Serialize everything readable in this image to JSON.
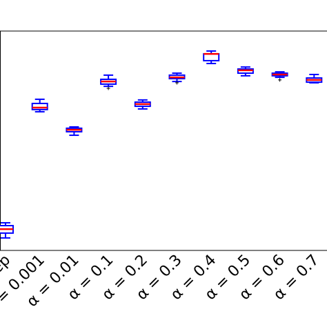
{
  "chart_data": {
    "type": "box",
    "categories": [
      "Rep",
      "α = 0.001",
      "α = 0.01",
      "α = 0.1",
      "α = 0.2",
      "α = 0.3",
      "α = 0.4",
      "α = 0.5",
      "α = 0.6",
      "α = 0.7"
    ],
    "boxes": [
      {
        "min": 0.057,
        "q1": 0.079,
        "median": 0.097,
        "q3": 0.113,
        "max": 0.126,
        "fliers": []
      },
      {
        "min": 0.632,
        "q1": 0.642,
        "median": 0.651,
        "q3": 0.67,
        "max": 0.689,
        "fliers": []
      },
      {
        "min": 0.525,
        "q1": 0.541,
        "median": 0.55,
        "q3": 0.557,
        "max": 0.563,
        "fliers": []
      },
      {
        "min": 0.748,
        "q1": 0.758,
        "median": 0.77,
        "q3": 0.78,
        "max": 0.799,
        "fliers": [
          0.739
        ]
      },
      {
        "min": 0.645,
        "q1": 0.657,
        "median": 0.667,
        "q3": 0.676,
        "max": 0.686,
        "fliers": []
      },
      {
        "min": 0.77,
        "q1": 0.783,
        "median": 0.789,
        "q3": 0.799,
        "max": 0.808,
        "fliers": [
          0.764
        ]
      },
      {
        "min": 0.852,
        "q1": 0.865,
        "median": 0.896,
        "q3": 0.896,
        "max": 0.909,
        "fliers": []
      },
      {
        "min": 0.796,
        "q1": 0.808,
        "median": 0.821,
        "q3": 0.827,
        "max": 0.836,
        "fliers": []
      },
      {
        "min": 0.789,
        "q1": 0.796,
        "median": 0.802,
        "q3": 0.808,
        "max": 0.814,
        "fliers": [
          0.777
        ]
      },
      {
        "min": 0.764,
        "q1": 0.767,
        "median": 0.777,
        "q3": 0.786,
        "max": 0.802,
        "fliers": []
      }
    ],
    "box_color": "#0000ff",
    "median_color": "#ff0000",
    "flier_color": "#000000",
    "ylim": [
      0,
      1
    ]
  }
}
